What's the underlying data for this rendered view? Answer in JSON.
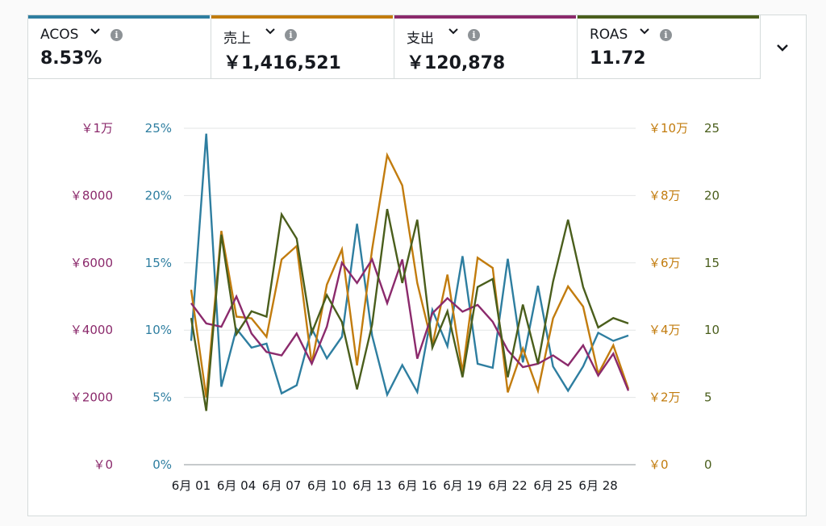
{
  "metrics": [
    {
      "label": "ACOS",
      "value": "8.53%",
      "color": "#2e7ea0"
    },
    {
      "label": "売上",
      "value": "￥1,416,521",
      "color": "#c27c0e"
    },
    {
      "label": "支出",
      "value": "￥120,878",
      "color": "#8b2a6c"
    },
    {
      "label": "ROAS",
      "value": "11.72",
      "color": "#4a5e1c"
    }
  ],
  "icons": {
    "dropdown": "chevron-down-icon",
    "info": "info-icon",
    "expand": "chevron-down-icon"
  },
  "info_glyph": "i",
  "chart_data": {
    "type": "line",
    "x": [
      "6月 01",
      "6月 02",
      "6月 03",
      "6月 04",
      "6月 05",
      "6月 06",
      "6月 07",
      "6月 08",
      "6月 09",
      "6月 10",
      "6月 11",
      "6月 12",
      "6月 13",
      "6月 14",
      "6月 15",
      "6月 16",
      "6月 17",
      "6月 18",
      "6月 19",
      "6月 20",
      "6月 21",
      "6月 22",
      "6月 23",
      "6月 24",
      "6月 25",
      "6月 26",
      "6月 27",
      "6月 28",
      "6月 29",
      "6月 30"
    ],
    "x_tick_labels": [
      "6月 01",
      "6月 04",
      "6月 07",
      "6月 10",
      "6月 13",
      "6月 16",
      "6月 19",
      "6月 22",
      "6月 25",
      "6月 28"
    ],
    "grid": true,
    "axes": {
      "spend": {
        "ticks": [
          "￥0",
          "￥2000",
          "￥4000",
          "￥6000",
          "￥8000",
          "￥1万"
        ],
        "range": [
          0,
          10000
        ],
        "color": "#8b2a6c"
      },
      "acos": {
        "ticks": [
          "0%",
          "5%",
          "10%",
          "15%",
          "20%",
          "25%"
        ],
        "range": [
          0,
          25
        ],
        "color": "#2e7ea0"
      },
      "sales": {
        "ticks": [
          "￥0",
          "￥2万",
          "￥4万",
          "￥6万",
          "￥8万",
          "￥10万"
        ],
        "range": [
          0,
          100000
        ],
        "color": "#c27c0e"
      },
      "roas": {
        "ticks": [
          "0",
          "5",
          "10",
          "15",
          "20",
          "25"
        ],
        "range": [
          0,
          25
        ],
        "color": "#4a5e1c"
      }
    },
    "series": [
      {
        "name": "ACOS",
        "axis": "acos",
        "color": "#2e7ea0",
        "values": [
          9.2,
          24.6,
          5.8,
          10.1,
          8.7,
          9.0,
          5.3,
          5.9,
          10.1,
          7.9,
          9.5,
          17.9,
          9.6,
          5.2,
          7.4,
          5.4,
          11.5,
          8.8,
          15.5,
          7.5,
          7.2,
          15.3,
          7.6,
          13.3,
          7.3,
          5.5,
          7.3,
          9.8,
          9.2,
          9.6
        ]
      },
      {
        "name": "売上",
        "axis": "sales",
        "color": "#c27c0e",
        "values": [
          52000,
          20000,
          69500,
          44000,
          43500,
          38000,
          61000,
          65000,
          30000,
          53500,
          64000,
          29500,
          64000,
          92000,
          83000,
          54000,
          35500,
          56500,
          27500,
          61500,
          58500,
          21500,
          34500,
          22000,
          43500,
          53000,
          47000,
          27000,
          35500,
          22500
        ]
      },
      {
        "name": "支出",
        "axis": "spend",
        "color": "#8b2a6c",
        "values": [
          4800,
          4200,
          4100,
          5000,
          3900,
          3350,
          3250,
          3900,
          3000,
          4100,
          6000,
          5400,
          6100,
          4800,
          6100,
          3150,
          4500,
          4950,
          4550,
          4750,
          4250,
          3400,
          2900,
          3000,
          3250,
          2950,
          3550,
          2650,
          3300,
          2200
        ]
      },
      {
        "name": "ROAS",
        "axis": "roas",
        "color": "#4a5e1c",
        "values": [
          10.9,
          4.0,
          17.1,
          9.7,
          11.4,
          11.0,
          18.6,
          16.8,
          9.8,
          12.6,
          10.6,
          5.6,
          10.4,
          19.0,
          13.5,
          18.2,
          8.7,
          11.4,
          6.5,
          13.2,
          13.8,
          6.5,
          11.9,
          7.5,
          13.6,
          18.2,
          13.2,
          10.2,
          10.9,
          10.5
        ]
      }
    ]
  }
}
